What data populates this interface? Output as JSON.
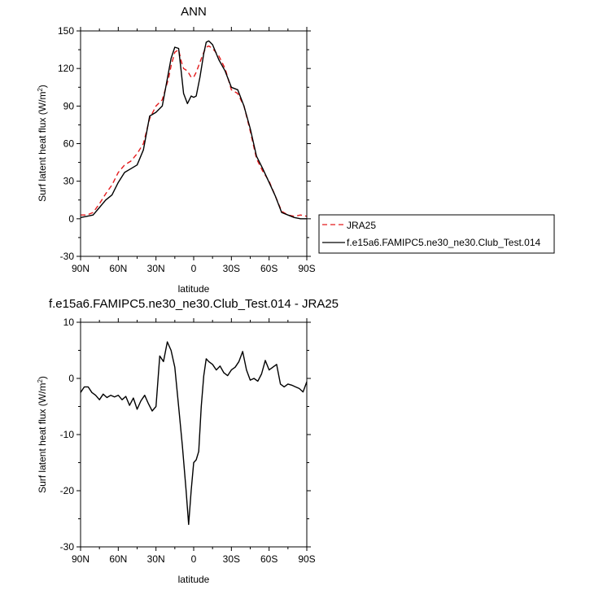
{
  "chart_data": [
    {
      "type": "line",
      "title": "ANN",
      "xlabel": "latitude",
      "ylabel": "Surf latent heat flux (W/m²)",
      "ylabel_parts": [
        "Surf latent heat flux (W/m",
        "2",
        ")"
      ],
      "xlim": [
        90,
        -90
      ],
      "ylim": [
        -30,
        150
      ],
      "xticks": [
        90,
        60,
        30,
        0,
        -30,
        -60,
        -90
      ],
      "xtick_labels": [
        "90N",
        "60N",
        "30N",
        "0",
        "30S",
        "60S",
        "90S"
      ],
      "yticks": [
        -30,
        0,
        30,
        60,
        90,
        120,
        150
      ],
      "ytick_labels": [
        "-30",
        "0",
        "30",
        "60",
        "90",
        "120",
        "150"
      ],
      "grid": false,
      "legend_position": "right",
      "series": [
        {
          "name": "JRA25",
          "color": "#e41a1c",
          "dash": "dashed",
          "x": [
            90,
            85,
            80,
            75,
            70,
            65,
            60,
            55,
            50,
            45,
            40,
            35,
            30,
            25,
            20,
            18,
            15,
            12,
            10,
            8,
            5,
            2,
            0,
            -2,
            -5,
            -8,
            -10,
            -12,
            -15,
            -20,
            -25,
            -30,
            -35,
            -40,
            -45,
            -50,
            -55,
            -60,
            -65,
            -70,
            -75,
            -80,
            -85,
            -90
          ],
          "y": [
            3,
            3,
            5,
            12,
            20,
            27,
            37,
            43,
            46,
            52,
            60,
            80,
            90,
            95,
            112,
            122,
            133,
            135,
            126,
            120,
            118,
            113,
            113,
            117,
            125,
            133,
            137,
            138,
            136,
            130,
            120,
            103,
            100,
            90,
            70,
            48,
            38,
            30,
            18,
            6,
            3,
            2,
            3,
            2
          ]
        },
        {
          "name": "f.e15a6.FAMIPC5.ne30_ne30.Club_Test.014",
          "color": "#000000",
          "dash": "solid",
          "x": [
            90,
            85,
            80,
            75,
            70,
            65,
            60,
            55,
            50,
            45,
            40,
            35,
            30,
            25,
            20,
            18,
            15,
            12,
            10,
            8,
            5,
            2,
            0,
            -2,
            -5,
            -8,
            -10,
            -12,
            -15,
            -20,
            -25,
            -30,
            -35,
            -40,
            -45,
            -50,
            -55,
            -60,
            -65,
            -70,
            -75,
            -80,
            -85,
            -90
          ],
          "y": [
            1,
            2,
            3,
            9,
            15,
            19,
            29,
            37,
            40,
            43,
            55,
            82,
            85,
            90,
            117,
            128,
            137,
            136,
            118,
            100,
            92,
            98,
            97,
            98,
            113,
            132,
            141,
            142,
            139,
            127,
            118,
            105,
            103,
            90,
            72,
            50,
            40,
            29,
            18,
            5,
            3,
            1,
            0,
            0
          ]
        }
      ]
    },
    {
      "type": "line",
      "title": "f.e15a6.FAMIPC5.ne30_ne30.Club_Test.014 - JRA25",
      "xlabel": "latitude",
      "ylabel": "Surf latent heat flux (W/m²)",
      "ylabel_parts": [
        "Surf latent heat flux (W/m",
        "2",
        ")"
      ],
      "xlim": [
        90,
        -90
      ],
      "ylim": [
        -30,
        10
      ],
      "xticks": [
        90,
        60,
        30,
        0,
        -30,
        -60,
        -90
      ],
      "xtick_labels": [
        "90N",
        "60N",
        "30N",
        "0",
        "30S",
        "60S",
        "90S"
      ],
      "yticks": [
        -30,
        -20,
        -10,
        0,
        10
      ],
      "ytick_labels": [
        "-30",
        "-20",
        "-10",
        "0",
        "10"
      ],
      "grid": false,
      "series": [
        {
          "color": "#000000",
          "dash": "solid",
          "x": [
            90,
            87,
            84,
            81,
            78,
            75,
            72,
            69,
            66,
            63,
            60,
            57,
            54,
            51,
            48,
            45,
            42,
            39,
            36,
            33,
            30,
            27,
            24,
            21,
            18,
            15,
            12,
            9,
            6,
            4,
            2,
            0,
            -2,
            -4,
            -6,
            -8,
            -10,
            -12,
            -15,
            -18,
            -21,
            -24,
            -27,
            -30,
            -33,
            -36,
            -39,
            -42,
            -45,
            -48,
            -51,
            -54,
            -57,
            -60,
            -63,
            -66,
            -69,
            -72,
            -75,
            -78,
            -81,
            -84,
            -87,
            -90
          ],
          "y": [
            -2.5,
            -1.5,
            -1.5,
            -2.5,
            -3.0,
            -3.8,
            -2.8,
            -3.4,
            -3.0,
            -3.3,
            -3.0,
            -3.8,
            -3.2,
            -4.8,
            -3.5,
            -5.5,
            -4.0,
            -3.0,
            -4.5,
            -5.8,
            -5.0,
            4.0,
            3.0,
            6.5,
            5.0,
            2.0,
            -5.0,
            -12.0,
            -20.0,
            -26.0,
            -20.0,
            -15.0,
            -14.5,
            -13.0,
            -5.0,
            0.5,
            3.5,
            3.0,
            2.5,
            1.5,
            2.2,
            1.0,
            0.5,
            1.5,
            2.0,
            3.0,
            4.8,
            1.5,
            -0.3,
            0.0,
            -0.5,
            0.8,
            3.2,
            1.5,
            2.0,
            2.5,
            -1.0,
            -1.5,
            -1.0,
            -1.2,
            -1.5,
            -1.8,
            -2.4,
            -0.6
          ]
        }
      ]
    }
  ]
}
